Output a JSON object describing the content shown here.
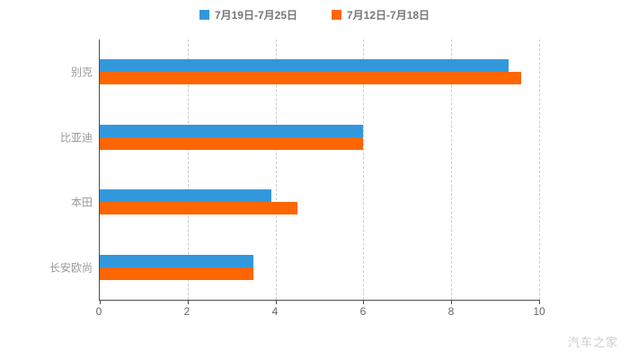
{
  "watermark": "汽车之家",
  "chart_data": {
    "type": "bar",
    "orientation": "horizontal",
    "title": "",
    "xlabel": "",
    "ylabel": "",
    "xlim": [
      0,
      10
    ],
    "ticks": [
      0,
      2,
      4,
      6,
      8,
      10
    ],
    "grid": "dashed-vertical",
    "legend_position": "top-center",
    "categories": [
      "别克",
      "比亚迪",
      "本田",
      "长安欧尚"
    ],
    "series": [
      {
        "name": "7月19日-7月25日",
        "color": "#3398DB",
        "values": [
          9.3,
          6.0,
          3.9,
          3.5
        ]
      },
      {
        "name": "7月12日-7月18日",
        "color": "#FF6600",
        "values": [
          9.6,
          6.0,
          4.5,
          3.5
        ]
      }
    ]
  }
}
